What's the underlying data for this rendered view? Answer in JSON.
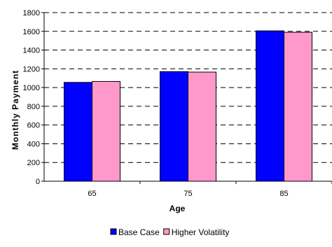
{
  "chart_data": {
    "type": "bar",
    "title": "",
    "xlabel": "Age",
    "ylabel": "Monthly Payment",
    "categories": [
      "65",
      "75",
      "85"
    ],
    "series": [
      {
        "name": "Base Case",
        "values": [
          1055,
          1170,
          1605
        ],
        "color": "#0000ff"
      },
      {
        "name": "Higher Volatility",
        "values": [
          1065,
          1165,
          1590
        ],
        "color": "#ff99cc"
      }
    ],
    "ylim": [
      0,
      1800
    ],
    "yticks": [
      0,
      200,
      400,
      600,
      800,
      1000,
      1200,
      1400,
      1600,
      1800
    ],
    "grid": "dashed horizontal",
    "legend_position": "bottom"
  }
}
